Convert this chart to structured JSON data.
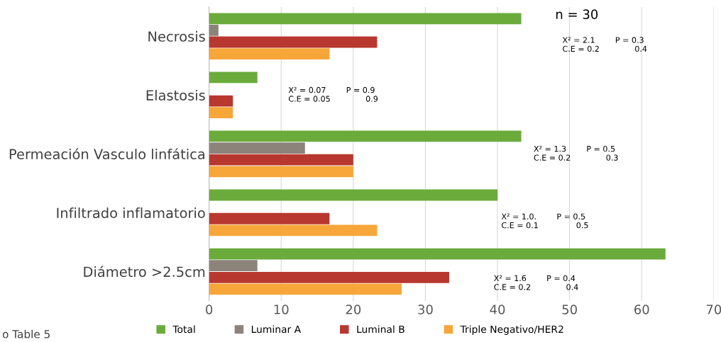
{
  "chart_data": {
    "type": "bar",
    "orientation": "horizontal",
    "categories": [
      "Necrosis",
      "Elastosis",
      "Permeación Vasculo linfática",
      "Infiltrado inflamatorio",
      "Diámetro >2.5cm"
    ],
    "series": [
      {
        "name": "Total",
        "color": "#6aab3c",
        "values": [
          43.3,
          6.7,
          43.3,
          40.0,
          63.3
        ]
      },
      {
        "name": "Luminar A",
        "color": "#8c837b",
        "values": [
          1.3,
          0,
          13.3,
          0,
          6.7
        ]
      },
      {
        "name": "Luminal B",
        "color": "#b8372f",
        "values": [
          23.3,
          3.3,
          20.0,
          16.7,
          33.3
        ]
      },
      {
        "name": "Triple Negativo/HER2",
        "color": "#f7a63a",
        "values": [
          16.7,
          3.3,
          20.0,
          23.3,
          26.7
        ]
      }
    ],
    "xlim": [
      0,
      70
    ],
    "xticks": [
      0,
      10,
      20,
      30,
      40,
      50,
      60,
      70
    ],
    "grid": "x",
    "legend": "bottom",
    "annotations": [
      "n = 30",
      "X² = 2.1        P = 0.3\nC.E = 0.2              0.4",
      "X² = 0.07        P = 0.9\nC.E = 0.05              0.9",
      "X² = 1.3        P = 0.5\nC.E = 0.2              0.3",
      "X² = 1.0.        P = 0.5\nC.E = 0.1               0.5",
      "X² = 1.6        P = 0.4\nC.E = 0.2              0.4",
      "o Table 5"
    ]
  }
}
